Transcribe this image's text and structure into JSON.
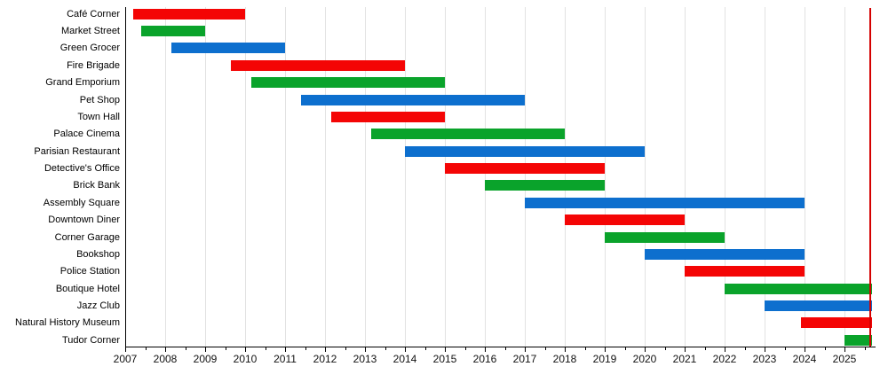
{
  "chart_data": {
    "type": "bar",
    "subtype": "gantt-timeline",
    "title": "",
    "xlabel": "",
    "ylabel": "",
    "orientation": "horizontal",
    "legend": false,
    "grid": {
      "show": true,
      "color": "#e2e2e2"
    },
    "x_axis": {
      "min": 2007,
      "max": 2025.75,
      "tick_years": [
        2007,
        2008,
        2009,
        2010,
        2011,
        2012,
        2013,
        2014,
        2015,
        2016,
        2017,
        2018,
        2019,
        2020,
        2021,
        2022,
        2023,
        2024,
        2025
      ],
      "tick_labels": [
        "2007",
        "2008",
        "2009",
        "2010",
        "2011",
        "2012",
        "2013",
        "2014",
        "2015",
        "2016",
        "2017",
        "2018",
        "2019",
        "2020",
        "2021",
        "2022",
        "2023",
        "2024",
        "2025"
      ],
      "minor_tick_step": 0.5
    },
    "today_line": {
      "year": 2025.64,
      "color": "#d40000"
    },
    "palette": {
      "red": "#f40505",
      "green": "#0aa32b",
      "blue": "#0d6fce"
    },
    "rows": [
      {
        "label": "Café Corner",
        "color": "red",
        "start": 2007.2,
        "end": 2010.0,
        "ongoing": false
      },
      {
        "label": "Market Street",
        "color": "green",
        "start": 2007.4,
        "end": 2009.0,
        "ongoing": false
      },
      {
        "label": "Green Grocer",
        "color": "blue",
        "start": 2008.15,
        "end": 2011.0,
        "ongoing": false
      },
      {
        "label": "Fire Brigade",
        "color": "red",
        "start": 2009.65,
        "end": 2014.0,
        "ongoing": false
      },
      {
        "label": "Grand Emporium",
        "color": "green",
        "start": 2010.15,
        "end": 2015.0,
        "ongoing": false
      },
      {
        "label": "Pet Shop",
        "color": "blue",
        "start": 2011.4,
        "end": 2017.0,
        "ongoing": false
      },
      {
        "label": "Town Hall",
        "color": "red",
        "start": 2012.15,
        "end": 2015.0,
        "ongoing": false
      },
      {
        "label": "Palace Cinema",
        "color": "green",
        "start": 2013.15,
        "end": 2018.0,
        "ongoing": false
      },
      {
        "label": "Parisian Restaurant",
        "color": "blue",
        "start": 2014.0,
        "end": 2020.0,
        "ongoing": false
      },
      {
        "label": "Detective's Office",
        "color": "red",
        "start": 2015.0,
        "end": 2019.0,
        "ongoing": false
      },
      {
        "label": "Brick Bank",
        "color": "green",
        "start": 2016.0,
        "end": 2019.0,
        "ongoing": false
      },
      {
        "label": "Assembly Square",
        "color": "blue",
        "start": 2017.0,
        "end": 2024.0,
        "ongoing": false
      },
      {
        "label": "Downtown Diner",
        "color": "red",
        "start": 2018.0,
        "end": 2021.0,
        "ongoing": false
      },
      {
        "label": "Corner Garage",
        "color": "green",
        "start": 2019.0,
        "end": 2022.0,
        "ongoing": false
      },
      {
        "label": "Bookshop",
        "color": "blue",
        "start": 2020.0,
        "end": 2024.0,
        "ongoing": false
      },
      {
        "label": "Police Station",
        "color": "red",
        "start": 2021.0,
        "end": 2024.0,
        "ongoing": false
      },
      {
        "label": "Boutique Hotel",
        "color": "green",
        "start": 2022.0,
        "end": 2025.65,
        "ongoing": true
      },
      {
        "label": "Jazz Club",
        "color": "blue",
        "start": 2023.0,
        "end": 2025.65,
        "ongoing": true
      },
      {
        "label": "Natural History Museum",
        "color": "red",
        "start": 2023.92,
        "end": 2025.65,
        "ongoing": true
      },
      {
        "label": "Tudor Corner",
        "color": "green",
        "start": 2025.0,
        "end": 2025.65,
        "ongoing": true
      }
    ]
  }
}
